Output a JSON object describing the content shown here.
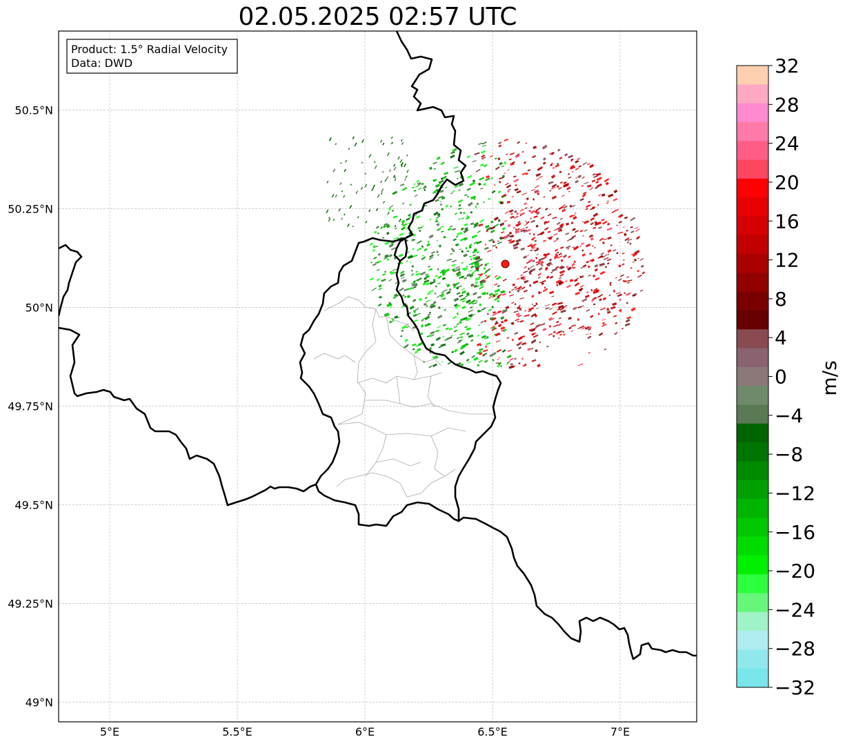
{
  "title": "02.05.2025 02:57 UTC",
  "info_box": {
    "product": "Product: 1.5° Radial Velocity",
    "source": "Data: DWD"
  },
  "map": {
    "lon_range": [
      4.8,
      7.3
    ],
    "lat_range": [
      48.95,
      50.7
    ],
    "lon_ticks": [
      {
        "value": 5.0,
        "label": "5°E"
      },
      {
        "value": 5.5,
        "label": "5.5°E"
      },
      {
        "value": 6.0,
        "label": "6°E"
      },
      {
        "value": 6.5,
        "label": "6.5°E"
      },
      {
        "value": 7.0,
        "label": "7°E"
      }
    ],
    "lat_ticks": [
      {
        "value": 49.0,
        "label": "49°N"
      },
      {
        "value": 49.25,
        "label": "49.25°N"
      },
      {
        "value": 49.5,
        "label": "49.5°N"
      },
      {
        "value": 49.75,
        "label": "49.75°N"
      },
      {
        "value": 50.0,
        "label": "50°N"
      },
      {
        "value": 50.25,
        "label": "50.25°N"
      },
      {
        "value": 50.5,
        "label": "50.5°N"
      }
    ],
    "radar_site": {
      "lon": 6.55,
      "lat": 50.11,
      "color": "#ff1a1a"
    },
    "grid": true
  },
  "colorbar": {
    "unit": "m/s",
    "min": -32,
    "max": 32,
    "tick_labels": [
      "32",
      "28",
      "24",
      "20",
      "16",
      "12",
      "8",
      "4",
      "0",
      "−4",
      "−8",
      "−12",
      "−16",
      "−20",
      "−24",
      "−28",
      "−32"
    ],
    "colors_top_to_bottom": [
      "#ffcfb0",
      "#ffa8c4",
      "#ff8ad0",
      "#ff7aa8",
      "#ff5c86",
      "#ff4661",
      "#ff0000",
      "#e80000",
      "#d60000",
      "#c20000",
      "#aa0000",
      "#920000",
      "#7a0000",
      "#660000",
      "#8a4a52",
      "#8a6270",
      "#8a7878",
      "#6f8a6a",
      "#5a7a55",
      "#006400",
      "#007400",
      "#008a00",
      "#00a000",
      "#00b400",
      "#00c800",
      "#00dc00",
      "#00f000",
      "#2cff3c",
      "#66f77a",
      "#a0f2c8",
      "#b0ecf0",
      "#90e8ec",
      "#78e6ea"
    ]
  }
}
